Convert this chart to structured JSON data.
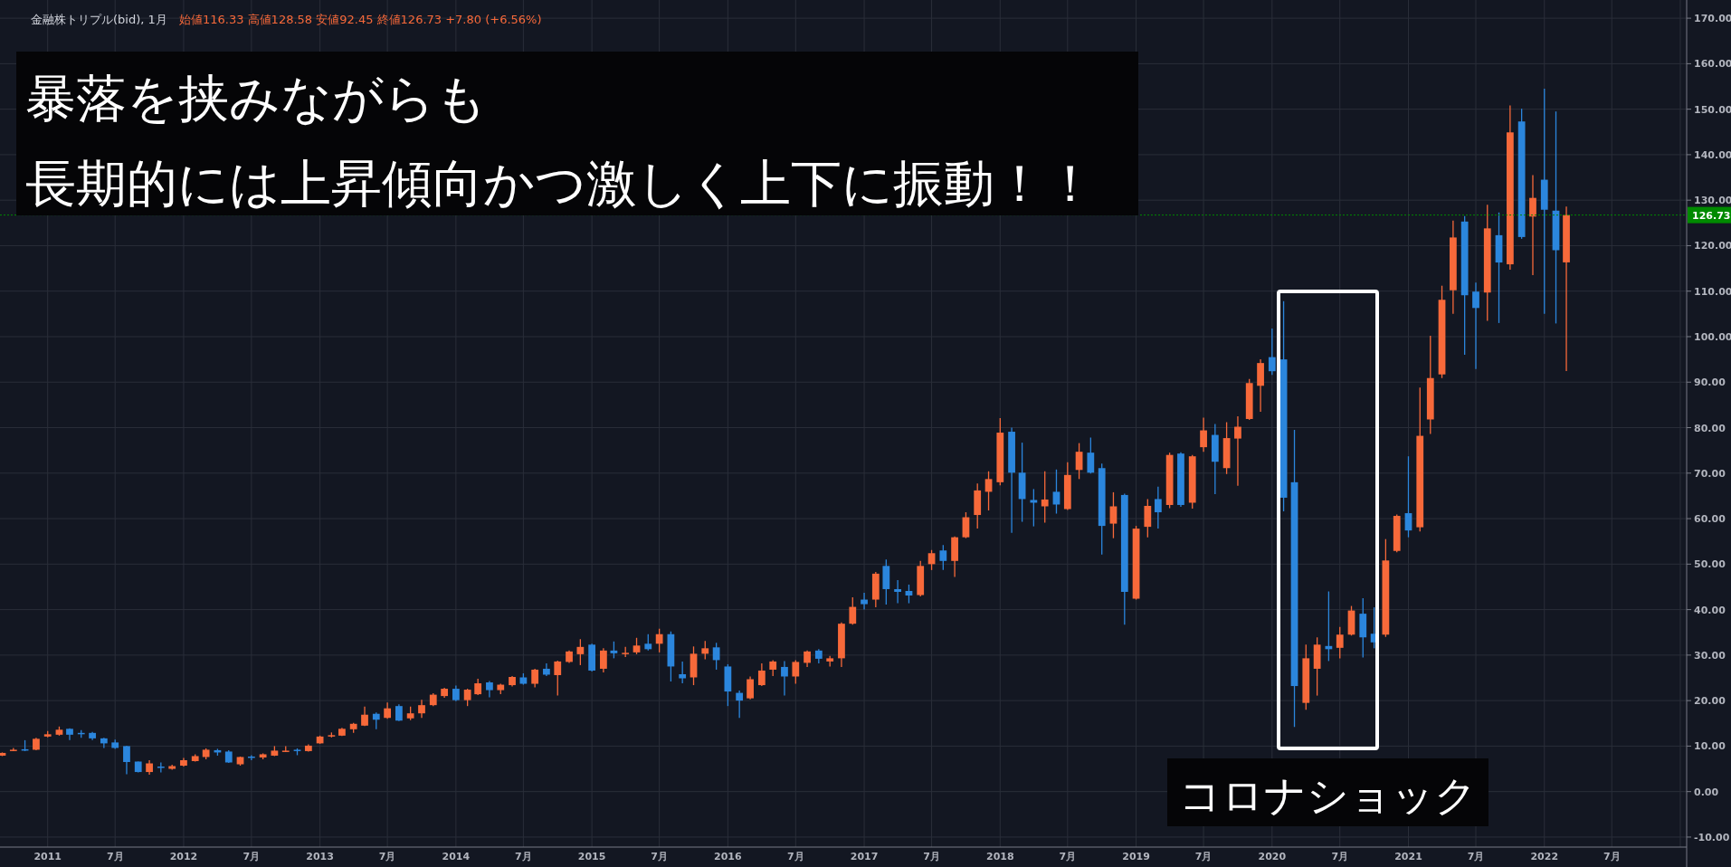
{
  "chart_data": {
    "type": "candlestick",
    "title": "金融株トリプル(bid), 1月",
    "annotations": [
      "始値116.33 高値128.58 安値92.45 終値126.73 +7.80 (+6.56%)",
      "暴落を挟みながらも",
      "長期的には上昇傾向かつ激しく上下に振動！！",
      "コロナショック"
    ],
    "x": [
      "2010-09",
      "2010-10",
      "2010-11",
      "2010-12",
      "2011-01",
      "2011-02",
      "2011-03",
      "2011-04",
      "2011-05",
      "2011-06",
      "2011-07",
      "2011-08",
      "2011-09",
      "2011-10",
      "2011-11",
      "2011-12",
      "2012-01",
      "2012-02",
      "2012-03",
      "2012-04",
      "2012-05",
      "2012-06",
      "2012-07",
      "2012-08",
      "2012-09",
      "2012-10",
      "2012-11",
      "2012-12",
      "2013-01",
      "2013-02",
      "2013-03",
      "2013-04",
      "2013-05",
      "2013-06",
      "2013-07",
      "2013-08",
      "2013-09",
      "2013-10",
      "2013-11",
      "2013-12",
      "2014-01",
      "2014-02",
      "2014-03",
      "2014-04",
      "2014-05",
      "2014-06",
      "2014-07",
      "2014-08",
      "2014-09",
      "2014-10",
      "2014-11",
      "2014-12",
      "2015-01",
      "2015-02",
      "2015-03",
      "2015-04",
      "2015-05",
      "2015-06",
      "2015-07",
      "2015-08",
      "2015-09",
      "2015-10",
      "2015-11",
      "2015-12",
      "2016-01",
      "2016-02",
      "2016-03",
      "2016-04",
      "2016-05",
      "2016-06",
      "2016-07",
      "2016-08",
      "2016-09",
      "2016-10",
      "2016-11",
      "2016-12",
      "2017-01",
      "2017-02",
      "2017-03",
      "2017-04",
      "2017-05",
      "2017-06",
      "2017-07",
      "2017-08",
      "2017-09",
      "2017-10",
      "2017-11",
      "2017-12",
      "2018-01",
      "2018-02",
      "2018-03",
      "2018-04",
      "2018-05",
      "2018-06",
      "2018-07",
      "2018-08",
      "2018-09",
      "2018-10",
      "2018-11",
      "2018-12",
      "2019-01",
      "2019-02",
      "2019-03",
      "2019-04",
      "2019-05",
      "2019-06",
      "2019-07",
      "2019-08",
      "2019-09",
      "2019-10",
      "2019-11",
      "2019-12",
      "2020-01",
      "2020-02",
      "2020-03",
      "2020-04",
      "2020-05",
      "2020-06",
      "2020-07",
      "2020-08",
      "2020-09",
      "2020-10",
      "2020-11",
      "2020-12",
      "2021-01",
      "2021-02",
      "2021-03",
      "2021-04",
      "2021-05",
      "2021-06",
      "2021-07",
      "2021-08",
      "2021-09",
      "2021-10",
      "2021-11",
      "2021-12",
      "2022-01",
      "2022-02",
      "2022-03"
    ],
    "ohlc": [
      [
        7.9,
        8.6,
        7.8,
        8.5
      ],
      [
        9.1,
        9.6,
        8.9,
        9.2
      ],
      [
        9.3,
        11.3,
        8.9,
        9.0
      ],
      [
        9.2,
        11.8,
        9.1,
        11.6
      ],
      [
        12.1,
        13.3,
        11.9,
        12.6
      ],
      [
        12.5,
        14.3,
        12.3,
        13.6
      ],
      [
        13.8,
        13.9,
        11.3,
        12.5
      ],
      [
        12.9,
        13.5,
        11.8,
        12.8
      ],
      [
        12.9,
        13.1,
        11.3,
        11.7
      ],
      [
        11.7,
        11.8,
        9.6,
        10.6
      ],
      [
        10.8,
        11.4,
        9.4,
        9.6
      ],
      [
        10.0,
        10.1,
        3.8,
        6.5
      ],
      [
        6.6,
        6.6,
        4.2,
        4.3
      ],
      [
        4.3,
        6.9,
        3.7,
        6.2
      ],
      [
        5.5,
        6.4,
        4.2,
        5.3
      ],
      [
        5.0,
        5.9,
        4.8,
        5.6
      ],
      [
        5.7,
        7.4,
        5.5,
        6.9
      ],
      [
        6.7,
        8.2,
        6.6,
        7.8
      ],
      [
        7.6,
        9.5,
        7.1,
        9.2
      ],
      [
        9.1,
        9.4,
        7.9,
        8.6
      ],
      [
        8.8,
        9.1,
        6.3,
        6.4
      ],
      [
        6.0,
        7.7,
        5.7,
        7.6
      ],
      [
        7.7,
        8.0,
        6.9,
        7.5
      ],
      [
        7.5,
        8.4,
        7.1,
        8.2
      ],
      [
        7.9,
        10.0,
        7.8,
        9.0
      ],
      [
        8.9,
        10.0,
        8.7,
        9.0
      ],
      [
        9.2,
        9.5,
        8.0,
        8.9
      ],
      [
        8.9,
        10.4,
        8.8,
        10.1
      ],
      [
        10.6,
        12.3,
        10.5,
        12.1
      ],
      [
        12.1,
        13.0,
        11.9,
        12.4
      ],
      [
        12.3,
        14.0,
        12.2,
        13.8
      ],
      [
        13.7,
        15.1,
        12.9,
        14.9
      ],
      [
        14.5,
        18.7,
        14.4,
        16.9
      ],
      [
        17.1,
        17.4,
        13.7,
        15.8
      ],
      [
        16.2,
        19.6,
        16.0,
        18.3
      ],
      [
        18.8,
        19.2,
        15.5,
        15.6
      ],
      [
        16.1,
        18.7,
        15.7,
        17.2
      ],
      [
        17.2,
        20.2,
        16.2,
        19.0
      ],
      [
        19.0,
        21.6,
        18.8,
        21.3
      ],
      [
        21.0,
        22.8,
        20.6,
        22.6
      ],
      [
        22.6,
        23.3,
        19.9,
        20.1
      ],
      [
        20.1,
        22.6,
        18.8,
        22.4
      ],
      [
        21.4,
        24.8,
        21.2,
        23.8
      ],
      [
        24.0,
        24.3,
        20.7,
        22.3
      ],
      [
        22.3,
        23.7,
        21.4,
        23.5
      ],
      [
        23.4,
        25.4,
        23.1,
        25.2
      ],
      [
        25.1,
        26.0,
        23.5,
        23.7
      ],
      [
        23.7,
        27.0,
        22.9,
        26.8
      ],
      [
        27.0,
        28.2,
        25.4,
        25.7
      ],
      [
        25.6,
        28.8,
        21.1,
        28.6
      ],
      [
        28.5,
        31.0,
        28.3,
        30.8
      ],
      [
        30.2,
        33.5,
        27.8,
        31.8
      ],
      [
        32.3,
        32.5,
        26.4,
        26.6
      ],
      [
        27.0,
        31.5,
        26.2,
        31.0
      ],
      [
        31.0,
        33.0,
        29.3,
        30.4
      ],
      [
        30.3,
        31.8,
        29.6,
        30.5
      ],
      [
        30.6,
        33.8,
        30.2,
        32.1
      ],
      [
        32.5,
        34.6,
        31.0,
        31.3
      ],
      [
        32.5,
        35.8,
        30.6,
        34.6
      ],
      [
        34.6,
        35.2,
        24.2,
        27.5
      ],
      [
        25.8,
        28.6,
        23.8,
        24.9
      ],
      [
        25.1,
        31.9,
        23.4,
        30.3
      ],
      [
        30.3,
        33.1,
        29.1,
        31.5
      ],
      [
        31.7,
        32.7,
        26.8,
        28.9
      ],
      [
        27.5,
        28.0,
        18.8,
        22.0
      ],
      [
        21.7,
        22.2,
        16.2,
        20.0
      ],
      [
        20.5,
        25.3,
        20.3,
        24.7
      ],
      [
        23.4,
        28.2,
        23.2,
        26.6
      ],
      [
        26.8,
        28.9,
        25.4,
        28.6
      ],
      [
        27.4,
        28.7,
        21.1,
        25.3
      ],
      [
        25.3,
        28.9,
        23.7,
        28.5
      ],
      [
        28.3,
        31.0,
        27.4,
        30.8
      ],
      [
        31.0,
        31.3,
        28.2,
        29.2
      ],
      [
        28.6,
        29.8,
        27.5,
        29.3
      ],
      [
        29.3,
        37.2,
        27.4,
        36.9
      ],
      [
        36.9,
        42.7,
        36.7,
        40.6
      ],
      [
        42.2,
        43.7,
        40.0,
        41.2
      ],
      [
        42.2,
        48.3,
        40.5,
        47.9
      ],
      [
        49.6,
        51.0,
        41.1,
        44.5
      ],
      [
        44.5,
        46.5,
        41.4,
        43.9
      ],
      [
        44.1,
        45.5,
        41.4,
        43.1
      ],
      [
        43.2,
        50.7,
        42.9,
        49.6
      ],
      [
        50.0,
        53.1,
        48.7,
        52.4
      ],
      [
        53.0,
        54.2,
        48.7,
        50.7
      ],
      [
        50.7,
        56.1,
        47.2,
        55.9
      ],
      [
        55.9,
        61.4,
        55.7,
        60.3
      ],
      [
        60.8,
        67.7,
        57.8,
        66.2
      ],
      [
        65.9,
        70.4,
        61.8,
        68.7
      ],
      [
        68.0,
        82.1,
        67.3,
        78.9
      ],
      [
        79.1,
        80.0,
        56.9,
        70.1
      ],
      [
        70.1,
        76.7,
        59.3,
        64.3
      ],
      [
        64.1,
        66.5,
        58.3,
        63.5
      ],
      [
        62.7,
        70.4,
        59.1,
        64.2
      ],
      [
        65.9,
        70.8,
        61.1,
        63.1
      ],
      [
        62.1,
        72.4,
        61.9,
        69.6
      ],
      [
        70.7,
        76.6,
        68.7,
        74.7
      ],
      [
        74.5,
        77.8,
        69.9,
        70.1
      ],
      [
        71.1,
        72.1,
        52.1,
        58.4
      ],
      [
        58.9,
        65.8,
        55.7,
        62.7
      ],
      [
        65.2,
        65.5,
        36.7,
        43.9
      ],
      [
        42.4,
        58.4,
        42.2,
        57.8
      ],
      [
        58.2,
        64.3,
        55.9,
        62.8
      ],
      [
        64.3,
        67.0,
        57.8,
        61.4
      ],
      [
        63.0,
        74.5,
        62.3,
        74.0
      ],
      [
        74.3,
        74.6,
        62.6,
        63.0
      ],
      [
        63.5,
        74.0,
        62.2,
        73.7
      ],
      [
        75.7,
        82.2,
        74.7,
        79.4
      ],
      [
        78.4,
        80.8,
        65.4,
        72.5
      ],
      [
        71.1,
        81.2,
        69.8,
        77.7
      ],
      [
        77.6,
        82.5,
        67.2,
        80.2
      ],
      [
        81.9,
        90.7,
        81.7,
        89.8
      ],
      [
        89.2,
        95.0,
        83.5,
        94.2
      ],
      [
        95.5,
        101.8,
        91.6,
        92.4
      ],
      [
        95.0,
        107.8,
        61.6,
        64.6
      ],
      [
        68.0,
        79.5,
        14.2,
        23.2
      ],
      [
        19.5,
        32.3,
        18.0,
        29.3
      ],
      [
        27.0,
        33.9,
        21.1,
        32.3
      ],
      [
        32.0,
        44.0,
        28.7,
        31.3
      ],
      [
        31.6,
        36.2,
        29.3,
        34.5
      ],
      [
        34.5,
        40.8,
        34.3,
        39.8
      ],
      [
        39.1,
        42.5,
        29.5,
        33.9
      ],
      [
        34.7,
        40.5,
        31.5,
        32.8
      ],
      [
        34.5,
        55.5,
        34.0,
        50.8
      ],
      [
        52.9,
        60.9,
        52.6,
        60.6
      ],
      [
        61.2,
        73.7,
        55.9,
        57.4
      ],
      [
        58.1,
        88.8,
        57.2,
        78.2
      ],
      [
        81.8,
        100.2,
        78.6,
        90.9
      ],
      [
        91.7,
        111.2,
        90.9,
        108.1
      ],
      [
        110.2,
        125.5,
        105.0,
        121.8
      ],
      [
        125.3,
        126.5,
        96.0,
        109.1
      ],
      [
        109.9,
        111.9,
        92.9,
        106.3
      ],
      [
        109.7,
        129.0,
        103.5,
        123.8
      ],
      [
        122.3,
        127.3,
        103.0,
        116.3
      ],
      [
        115.9,
        150.8,
        114.7,
        144.9
      ],
      [
        147.3,
        150.1,
        121.5,
        121.9
      ],
      [
        126.4,
        135.5,
        113.5,
        130.5
      ],
      [
        134.5,
        154.5,
        105.0,
        127.9
      ],
      [
        127.7,
        149.5,
        102.9,
        119.0
      ],
      [
        116.33,
        128.58,
        92.45,
        126.73
      ]
    ],
    "colors": [
      "#f7693a",
      "#f7693a",
      "#2b86dd",
      "#f7693a",
      "#f7693a",
      "#f7693a",
      "#2b86dd",
      "#2b86dd",
      "#2b86dd",
      "#2b86dd",
      "#2b86dd",
      "#2b86dd",
      "#2b86dd",
      "#f7693a",
      "#2b86dd",
      "#f7693a",
      "#f7693a",
      "#f7693a",
      "#f7693a",
      "#2b86dd",
      "#2b86dd",
      "#f7693a",
      "#2b86dd",
      "#f7693a",
      "#f7693a",
      "#f7693a",
      "#2b86dd",
      "#f7693a",
      "#f7693a",
      "#f7693a",
      "#f7693a",
      "#f7693a",
      "#f7693a",
      "#2b86dd",
      "#f7693a",
      "#2b86dd",
      "#f7693a",
      "#f7693a",
      "#f7693a",
      "#f7693a",
      "#2b86dd",
      "#f7693a",
      "#f7693a",
      "#2b86dd",
      "#f7693a",
      "#f7693a",
      "#2b86dd",
      "#f7693a",
      "#2b86dd",
      "#f7693a",
      "#f7693a",
      "#f7693a",
      "#2b86dd",
      "#f7693a",
      "#2b86dd",
      "#f7693a",
      "#f7693a",
      "#2b86dd",
      "#f7693a",
      "#2b86dd",
      "#2b86dd",
      "#f7693a",
      "#f7693a",
      "#2b86dd",
      "#2b86dd",
      "#2b86dd",
      "#f7693a",
      "#f7693a",
      "#f7693a",
      "#2b86dd",
      "#f7693a",
      "#f7693a",
      "#2b86dd",
      "#f7693a",
      "#f7693a",
      "#f7693a",
      "#2b86dd",
      "#f7693a",
      "#2b86dd",
      "#2b86dd",
      "#2b86dd",
      "#f7693a",
      "#f7693a",
      "#2b86dd",
      "#f7693a",
      "#f7693a",
      "#f7693a",
      "#f7693a",
      "#f7693a",
      "#2b86dd",
      "#2b86dd",
      "#2b86dd",
      "#f7693a",
      "#2b86dd",
      "#f7693a",
      "#f7693a",
      "#2b86dd",
      "#2b86dd",
      "#f7693a",
      "#2b86dd",
      "#f7693a",
      "#f7693a",
      "#2b86dd",
      "#f7693a",
      "#2b86dd",
      "#f7693a",
      "#f7693a",
      "#2b86dd",
      "#f7693a",
      "#f7693a",
      "#f7693a",
      "#f7693a",
      "#2b86dd",
      "#2b86dd",
      "#2b86dd",
      "#f7693a",
      "#f7693a",
      "#2b86dd",
      "#f7693a",
      "#f7693a",
      "#2b86dd",
      "#2b86dd",
      "#f7693a",
      "#f7693a",
      "#2b86dd",
      "#f7693a",
      "#f7693a",
      "#f7693a",
      "#f7693a",
      "#2b86dd",
      "#2b86dd",
      "#f7693a",
      "#2b86dd",
      "#f7693a",
      "#2b86dd",
      "#f7693a",
      "#2b86dd",
      "#2b86dd",
      "#f7693a"
    ],
    "xlim": [
      "2010-08-26",
      "2023-01-18"
    ],
    "xticks": [
      {
        "value": "2011-01-01",
        "label": "2011"
      },
      {
        "value": "2011-07-01",
        "label": "7月"
      },
      {
        "value": "2012-01-01",
        "label": "2012"
      },
      {
        "value": "2012-07-01",
        "label": "7月"
      },
      {
        "value": "2013-01-01",
        "label": "2013"
      },
      {
        "value": "2013-07-01",
        "label": "7月"
      },
      {
        "value": "2014-01-01",
        "label": "2014"
      },
      {
        "value": "2014-07-01",
        "label": "7月"
      },
      {
        "value": "2015-01-01",
        "label": "2015"
      },
      {
        "value": "2015-07-01",
        "label": "7月"
      },
      {
        "value": "2016-01-01",
        "label": "2016"
      },
      {
        "value": "2016-07-01",
        "label": "7月"
      },
      {
        "value": "2017-01-01",
        "label": "2017"
      },
      {
        "value": "2017-07-01",
        "label": "7月"
      },
      {
        "value": "2018-01-01",
        "label": "2018"
      },
      {
        "value": "2018-07-01",
        "label": "7月"
      },
      {
        "value": "2019-01-01",
        "label": "2019"
      },
      {
        "value": "2019-07-01",
        "label": "7月"
      },
      {
        "value": "2020-01-01",
        "label": "2020"
      },
      {
        "value": "2020-07-01",
        "label": "7月"
      },
      {
        "value": "2021-01-01",
        "label": "2021"
      },
      {
        "value": "2021-07-01",
        "label": "7月"
      },
      {
        "value": "2022-01-01",
        "label": "2022"
      },
      {
        "value": "2022-07-01",
        "label": "7月"
      },
      {
        "value": "2023-01-01",
        "label": null
      }
    ],
    "ylim": [
      -12.2,
      174
    ],
    "yticks": [
      {
        "value": -10,
        "label": "-10.00"
      },
      {
        "value": 0,
        "label": "0.00"
      },
      {
        "value": 10,
        "label": "10.00"
      },
      {
        "value": 20,
        "label": "20.00"
      },
      {
        "value": 30,
        "label": "30.00"
      },
      {
        "value": 40,
        "label": "40.00"
      },
      {
        "value": 50,
        "label": "50.00"
      },
      {
        "value": 60,
        "label": "60.00"
      },
      {
        "value": 70,
        "label": "70.00"
      },
      {
        "value": 80,
        "label": "80.00"
      },
      {
        "value": 90,
        "label": "90.00"
      },
      {
        "value": 100,
        "label": "100.00"
      },
      {
        "value": 110,
        "label": "110.00"
      },
      {
        "value": 120,
        "label": "120.00"
      },
      {
        "value": 130,
        "label": "130.00"
      },
      {
        "value": 140,
        "label": "140.00"
      },
      {
        "value": 150,
        "label": "150.00"
      },
      {
        "value": 160,
        "label": "160.00"
      },
      {
        "value": 170,
        "label": "170.00"
      }
    ],
    "ref_lines": [
      {
        "axis": "y",
        "value": 126.73,
        "label": "126.73",
        "color": "#008a00",
        "line_style": "dotted"
      }
    ],
    "grid": true
  }
}
